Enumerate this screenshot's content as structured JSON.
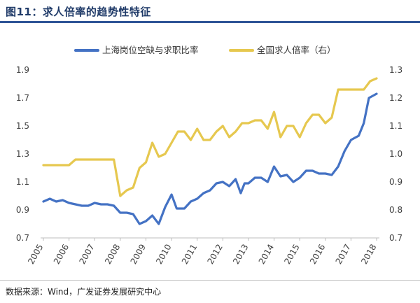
{
  "figure": {
    "title": "图11：求人倍率的趋势性特征",
    "source": "数据来源：Wind，广发证券发展研究中心"
  },
  "chart_data": {
    "type": "line",
    "title": "图11：求人倍率的趋势性特征",
    "xlabel": "",
    "ylabel": "",
    "x_tick_labels": [
      "2005",
      "2006",
      "2007",
      "2008",
      "2009",
      "2010",
      "2011",
      "2012",
      "2013",
      "2014",
      "2015",
      "2016",
      "2017",
      "2018"
    ],
    "x_range": [
      2005,
      2018
    ],
    "y_left": {
      "ticks": [
        "0.7",
        "0.9",
        "1.1",
        "1.3",
        "1.5",
        "1.7",
        "1.9"
      ],
      "range": [
        0.7,
        1.9
      ]
    },
    "y_right": {
      "ticks": [
        "0.7",
        "0.8",
        "0.9",
        "1.0",
        "1.1",
        "1.2",
        "1.3"
      ],
      "range": [
        0.7,
        1.3
      ]
    },
    "legend_position": "top",
    "grid": false,
    "series": [
      {
        "name": "上海岗位空缺与求职比率",
        "axis": "left",
        "color": "#4472c4",
        "points": [
          [
            2005.0,
            0.96
          ],
          [
            2005.25,
            0.98
          ],
          [
            2005.5,
            0.96
          ],
          [
            2005.75,
            0.97
          ],
          [
            2006.0,
            0.95
          ],
          [
            2006.25,
            0.94
          ],
          [
            2006.5,
            0.93
          ],
          [
            2006.75,
            0.93
          ],
          [
            2007.0,
            0.95
          ],
          [
            2007.25,
            0.94
          ],
          [
            2007.5,
            0.94
          ],
          [
            2007.75,
            0.93
          ],
          [
            2008.0,
            0.88
          ],
          [
            2008.25,
            0.88
          ],
          [
            2008.5,
            0.87
          ],
          [
            2008.75,
            0.8
          ],
          [
            2009.0,
            0.82
          ],
          [
            2009.25,
            0.86
          ],
          [
            2009.5,
            0.8
          ],
          [
            2009.75,
            0.92
          ],
          [
            2010.0,
            1.01
          ],
          [
            2010.2,
            0.91
          ],
          [
            2010.5,
            0.91
          ],
          [
            2010.75,
            0.96
          ],
          [
            2011.0,
            0.98
          ],
          [
            2011.25,
            1.02
          ],
          [
            2011.5,
            1.04
          ],
          [
            2011.75,
            1.09
          ],
          [
            2012.0,
            1.1
          ],
          [
            2012.25,
            1.07
          ],
          [
            2012.5,
            1.12
          ],
          [
            2012.7,
            1.02
          ],
          [
            2012.85,
            1.09
          ],
          [
            2013.0,
            1.09
          ],
          [
            2013.25,
            1.13
          ],
          [
            2013.5,
            1.13
          ],
          [
            2013.75,
            1.1
          ],
          [
            2014.0,
            1.21
          ],
          [
            2014.25,
            1.14
          ],
          [
            2014.5,
            1.15
          ],
          [
            2014.75,
            1.1
          ],
          [
            2015.0,
            1.13
          ],
          [
            2015.25,
            1.18
          ],
          [
            2015.5,
            1.18
          ],
          [
            2015.75,
            1.16
          ],
          [
            2016.0,
            1.16
          ],
          [
            2016.25,
            1.15
          ],
          [
            2016.5,
            1.21
          ],
          [
            2016.75,
            1.32
          ],
          [
            2017.0,
            1.4
          ],
          [
            2017.3,
            1.43
          ],
          [
            2017.5,
            1.52
          ],
          [
            2017.7,
            1.7
          ],
          [
            2018.0,
            1.73
          ]
        ]
      },
      {
        "name": "全国求人倍率（右）",
        "axis": "right",
        "color": "#e6c84f",
        "points": [
          [
            2005.0,
            0.96
          ],
          [
            2005.5,
            0.96
          ],
          [
            2006.0,
            0.96
          ],
          [
            2006.25,
            0.98
          ],
          [
            2006.5,
            0.98
          ],
          [
            2007.0,
            0.98
          ],
          [
            2007.5,
            0.98
          ],
          [
            2007.75,
            0.98
          ],
          [
            2008.0,
            0.85
          ],
          [
            2008.25,
            0.87
          ],
          [
            2008.5,
            0.88
          ],
          [
            2008.75,
            0.95
          ],
          [
            2009.0,
            0.97
          ],
          [
            2009.25,
            1.04
          ],
          [
            2009.5,
            0.99
          ],
          [
            2009.75,
            1.0
          ],
          [
            2010.0,
            1.04
          ],
          [
            2010.25,
            1.08
          ],
          [
            2010.5,
            1.08
          ],
          [
            2010.75,
            1.05
          ],
          [
            2011.0,
            1.09
          ],
          [
            2011.25,
            1.05
          ],
          [
            2011.5,
            1.05
          ],
          [
            2011.75,
            1.08
          ],
          [
            2012.0,
            1.1
          ],
          [
            2012.25,
            1.06
          ],
          [
            2012.5,
            1.08
          ],
          [
            2012.75,
            1.11
          ],
          [
            2013.0,
            1.11
          ],
          [
            2013.25,
            1.12
          ],
          [
            2013.5,
            1.12
          ],
          [
            2013.75,
            1.09
          ],
          [
            2014.0,
            1.15
          ],
          [
            2014.25,
            1.06
          ],
          [
            2014.5,
            1.1
          ],
          [
            2014.75,
            1.1
          ],
          [
            2015.0,
            1.06
          ],
          [
            2015.25,
            1.11
          ],
          [
            2015.5,
            1.14
          ],
          [
            2015.75,
            1.14
          ],
          [
            2016.0,
            1.11
          ],
          [
            2016.25,
            1.13
          ],
          [
            2016.5,
            1.23
          ],
          [
            2016.75,
            1.23
          ],
          [
            2017.0,
            1.23
          ],
          [
            2017.25,
            1.23
          ],
          [
            2017.5,
            1.23
          ],
          [
            2017.75,
            1.26
          ],
          [
            2018.0,
            1.27
          ]
        ]
      }
    ]
  }
}
